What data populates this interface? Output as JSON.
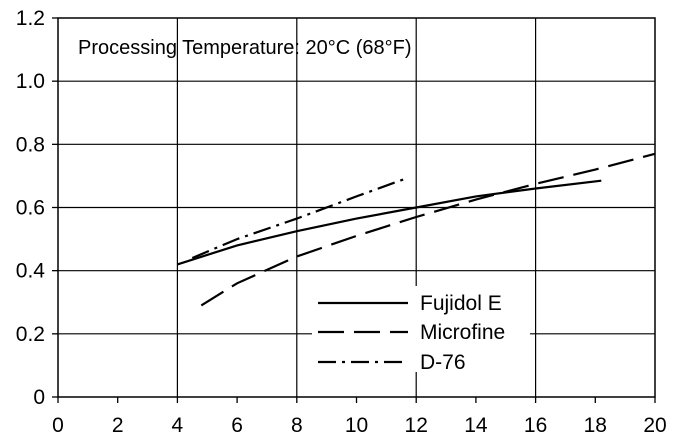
{
  "chart_data": {
    "type": "line",
    "title": "",
    "annotation": "Processing Temperature: 20°C (68°F)",
    "xlabel": "",
    "ylabel": "",
    "xlim": [
      0,
      20
    ],
    "ylim": [
      0,
      1.2
    ],
    "x_ticks": [
      "0",
      "2",
      "4",
      "6",
      "8",
      "10",
      "12",
      "14",
      "16",
      "18",
      "20"
    ],
    "y_ticks": [
      "0",
      "0.2",
      "0.4",
      "0.6",
      "0.8",
      "1.0",
      "1.2"
    ],
    "grid": true,
    "legend_position": "bottom-right",
    "series": [
      {
        "name": "Fujidol E",
        "line_style": "solid",
        "points": [
          [
            4,
            0.42
          ],
          [
            6,
            0.48
          ],
          [
            8,
            0.525
          ],
          [
            10,
            0.565
          ],
          [
            12,
            0.6
          ],
          [
            14,
            0.635
          ],
          [
            16,
            0.66
          ],
          [
            18.2,
            0.685
          ]
        ]
      },
      {
        "name": "Microfine",
        "line_style": "dashed",
        "points": [
          [
            4.8,
            0.29
          ],
          [
            6,
            0.36
          ],
          [
            8,
            0.445
          ],
          [
            10,
            0.51
          ],
          [
            12,
            0.57
          ],
          [
            14,
            0.625
          ],
          [
            16,
            0.675
          ],
          [
            18,
            0.72
          ],
          [
            20,
            0.77
          ]
        ]
      },
      {
        "name": "D-76",
        "line_style": "dashdot",
        "points": [
          [
            4.5,
            0.44
          ],
          [
            6,
            0.5
          ],
          [
            8,
            0.565
          ],
          [
            10,
            0.635
          ],
          [
            11.6,
            0.69
          ]
        ]
      }
    ]
  }
}
